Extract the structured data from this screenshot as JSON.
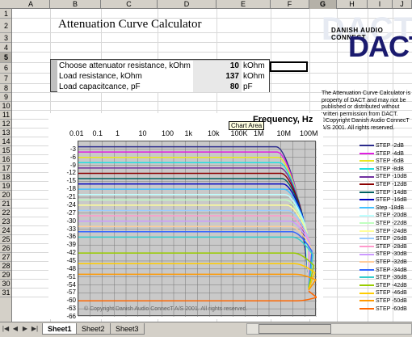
{
  "columns": [
    "A",
    "B",
    "C",
    "D",
    "E",
    "F",
    "G",
    "H",
    "I",
    "J"
  ],
  "selected_column": "G",
  "rows": [
    "1",
    "2",
    "3",
    "4",
    "5",
    "6",
    "7",
    "8",
    "9",
    "10",
    "11",
    "12",
    "13",
    "14",
    "15",
    "16",
    "17",
    "18",
    "19",
    "20",
    "21",
    "22",
    "23",
    "24",
    "25",
    "26",
    "27",
    "28",
    "29",
    "30",
    "31"
  ],
  "selected_row": "5",
  "title": "Attenuation Curve Calculator",
  "inputs": [
    {
      "label": "Choose attenuator resistance, kOhm",
      "value": "10",
      "unit": "kOhm"
    },
    {
      "label": "Load resistance, kOhm",
      "value": "137",
      "unit": "kOhm"
    },
    {
      "label": "Load capacitcance, pF",
      "value": "80",
      "unit": "pF"
    }
  ],
  "logo": {
    "small_text": "DANISH AUDIO CONNECT",
    "big_text": "DACT",
    "bg_text": "DACT"
  },
  "notice": "The Attenuation Curve Calculator is property of DACT and may not be published or distributed without written permission from DACT. ©Copyright Danish Audio ConnecT A/S 2001. All rights reserved.",
  "chart_tooltip": "Chart Area",
  "chart_data": {
    "type": "line",
    "xlabel": "Frequency, Hz",
    "x_ticks": [
      "0.01",
      "0.1",
      "1",
      "10",
      "100",
      "1k",
      "10k",
      "100K",
      "1M",
      "10M",
      "100M"
    ],
    "y_ticks": [
      "-3",
      "-6",
      "-9",
      "-12",
      "-15",
      "-18",
      "-21",
      "-24",
      "-27",
      "-30",
      "-33",
      "-36",
      "-39",
      "-42",
      "-45",
      "-48",
      "-51",
      "-54",
      "-57",
      "-60",
      "-63",
      "-66"
    ],
    "ylim": [
      -66,
      0
    ],
    "x_log10_range": [
      -2,
      8
    ],
    "rolloff_log10_x": 6.3,
    "end_value": -50,
    "series": [
      {
        "name": "STEP -2dB",
        "values": [
          -2
        ],
        "color": "#2b2b8c"
      },
      {
        "name": "STEP -4dB",
        "values": [
          -4
        ],
        "color": "#e020e0"
      },
      {
        "name": "STEP -6dB",
        "values": [
          -6
        ],
        "color": "#e8e820"
      },
      {
        "name": "STEP -8dB",
        "values": [
          -8
        ],
        "color": "#20e0e0"
      },
      {
        "name": "STEP -10dB",
        "values": [
          -10
        ],
        "color": "#7030a0"
      },
      {
        "name": "STEP -12dB",
        "values": [
          -12
        ],
        "color": "#8b0000"
      },
      {
        "name": "STEP -14dB",
        "values": [
          -14
        ],
        "color": "#006060"
      },
      {
        "name": "STEP -16dB",
        "values": [
          -16
        ],
        "color": "#0000c0"
      },
      {
        "name": "Step -18dB",
        "values": [
          -18
        ],
        "color": "#40c0ff"
      },
      {
        "name": "STEP -20dB",
        "values": [
          -20
        ],
        "color": "#c0ffff"
      },
      {
        "name": "STEP -22dB",
        "values": [
          -22
        ],
        "color": "#c0ffc0"
      },
      {
        "name": "STEP -24dB",
        "values": [
          -24
        ],
        "color": "#ffff99"
      },
      {
        "name": "STEP -26dB",
        "values": [
          -26
        ],
        "color": "#99ccff"
      },
      {
        "name": "STEP -28dB",
        "values": [
          -28
        ],
        "color": "#ff99cc"
      },
      {
        "name": "STEP -30dB",
        "values": [
          -30
        ],
        "color": "#cc99ff"
      },
      {
        "name": "STEP -32dB",
        "values": [
          -32
        ],
        "color": "#ffcc99"
      },
      {
        "name": "STEP -34dB",
        "values": [
          -34
        ],
        "color": "#3366ff"
      },
      {
        "name": "STEP -36dB",
        "values": [
          -36
        ],
        "color": "#33cccc"
      },
      {
        "name": "STEP -42dB",
        "values": [
          -42
        ],
        "color": "#99cc00"
      },
      {
        "name": "STEP -46dB",
        "values": [
          -46
        ],
        "color": "#ffcc00"
      },
      {
        "name": "STEP -50dB",
        "values": [
          -50
        ],
        "color": "#ff9900"
      },
      {
        "name": "STEP -60dB",
        "values": [
          -60
        ],
        "color": "#ff6600"
      }
    ]
  },
  "copyright": "© Copyright Danish Audio ConnecT A/S 2001. All rights reserved.",
  "tabs": [
    "Sheet1",
    "Sheet2",
    "Sheet3"
  ],
  "active_tab": "Sheet1"
}
